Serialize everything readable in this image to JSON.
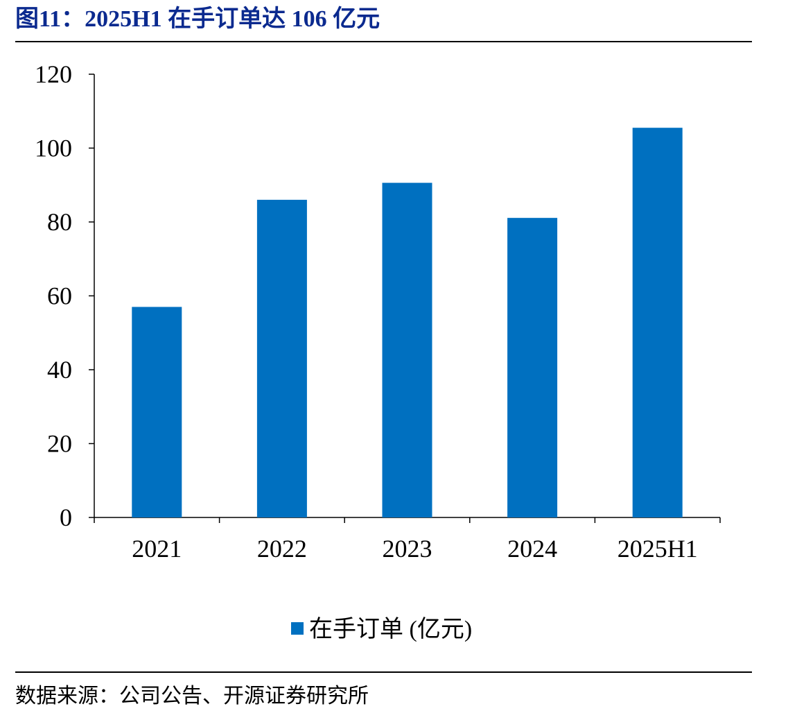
{
  "title": "图11：2025H1 在手订单达 106 亿元",
  "source": "数据来源：公司公告、开源证券研究所",
  "colors": {
    "bar": "#0070c0",
    "title": "#0b2a8f"
  },
  "chart_data": {
    "type": "bar",
    "title": "",
    "xlabel": "",
    "ylabel": "",
    "categories": [
      "2021",
      "2022",
      "2023",
      "2024",
      "2025H1"
    ],
    "series": [
      {
        "name": "在手订单 (亿元)",
        "values": [
          57,
          86,
          90.6,
          81.1,
          105.5
        ]
      }
    ],
    "ylim": [
      0,
      120
    ],
    "yticks": [
      0,
      20,
      40,
      60,
      80,
      100,
      120
    ],
    "grid": false,
    "legend_position": "bottom-center"
  }
}
